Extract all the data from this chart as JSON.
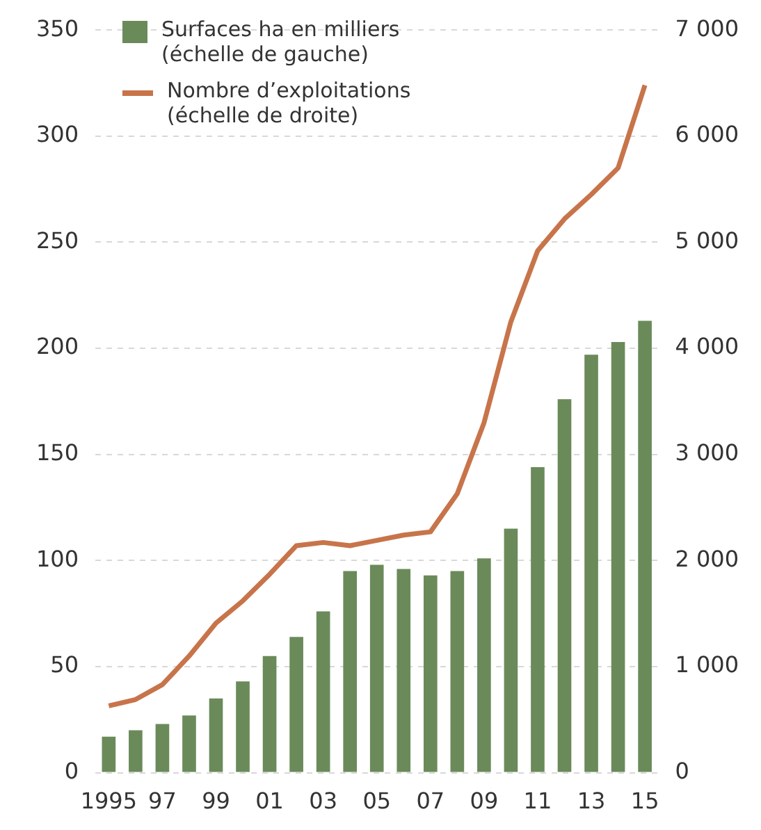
{
  "chart_data": {
    "type": "bar",
    "categories": [
      "1995",
      null,
      "97",
      null,
      "99",
      null,
      "01",
      null,
      "03",
      null,
      "05",
      null,
      "07",
      null,
      "09",
      null,
      "11",
      null,
      "13",
      null,
      "15"
    ],
    "series": [
      {
        "name": "Surfaces ha en milliers (échelle de gauche)",
        "color": "#6b8a5a",
        "values": [
          17,
          20,
          23,
          27,
          35,
          43,
          55,
          64,
          76,
          95,
          98,
          96,
          93,
          95,
          101,
          115,
          144,
          176,
          197,
          203,
          213
        ]
      },
      {
        "name": "Nombre d’exploitations (échelle de droite)",
        "type": "line",
        "axis": "y2",
        "color": "#c8744a",
        "values": [
          630,
          690,
          830,
          1100,
          1410,
          1620,
          1870,
          2140,
          2170,
          2140,
          2190,
          2240,
          2270,
          2630,
          3300,
          4250,
          4920,
          5220,
          5450,
          5700,
          6480
        ]
      }
    ],
    "ylim": [
      0,
      350
    ],
    "yticks": [
      0,
      50,
      100,
      150,
      200,
      250,
      300,
      350
    ],
    "y2lim": [
      0,
      7000
    ],
    "y2ticks": [
      {
        "value": 0,
        "label": "0"
      },
      {
        "value": 1000,
        "label": "1 000"
      },
      {
        "value": 2000,
        "label": "2 000"
      },
      {
        "value": 3000,
        "label": "3 000"
      },
      {
        "value": 4000,
        "label": "4 000"
      },
      {
        "value": 5000,
        "label": "5 000"
      },
      {
        "value": 6000,
        "label": "6 000"
      },
      {
        "value": 7000,
        "label": "7 000"
      }
    ],
    "grid": "y",
    "legend": "top left",
    "marker": "none",
    "line_style": "solid"
  }
}
